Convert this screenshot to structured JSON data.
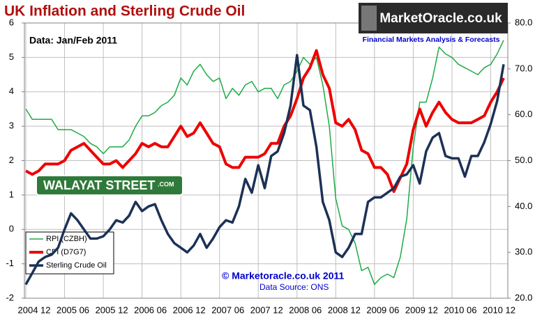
{
  "chart_data": {
    "type": "line",
    "title": "UK Inflation and Sterling Crude Oil",
    "subtitle": "Data:  Jan/Feb 2011",
    "logo": "MarketOracle.co.uk",
    "logo_tagline": "Financial Markets Analysis & Forecasts",
    "badge": "WALAYAT STREET",
    "badge_suffix": ".COM",
    "copyright": "© Marketoracle.co.uk  2011",
    "source": "Data Source: ONS",
    "categories": [
      "2004 12",
      null,
      null,
      null,
      null,
      null,
      "2005 06",
      null,
      null,
      null,
      null,
      null,
      "2005 12",
      null,
      null,
      null,
      null,
      null,
      "2006 06",
      null,
      null,
      null,
      null,
      null,
      "2006 12",
      null,
      null,
      null,
      null,
      null,
      "2007 06",
      null,
      null,
      null,
      null,
      null,
      "2007 12",
      null,
      null,
      null,
      null,
      null,
      "2008 06",
      null,
      null,
      null,
      null,
      null,
      "2008 12",
      null,
      null,
      null,
      null,
      null,
      "2009 06",
      null,
      null,
      null,
      null,
      null,
      "2009 12",
      null,
      null,
      null,
      null,
      null,
      "2010 06",
      null,
      null,
      null,
      null,
      null,
      "2010 12",
      null,
      null
    ],
    "series": [
      {
        "name": "RPI (CZBH)",
        "color": "#1faa46",
        "width": 1.5,
        "values": [
          3.5,
          3.2,
          3.2,
          3.2,
          3.2,
          2.9,
          2.9,
          2.9,
          2.8,
          2.7,
          2.5,
          2.4,
          2.2,
          2.4,
          2.4,
          2.4,
          2.6,
          3.0,
          3.3,
          3.3,
          3.4,
          3.6,
          3.7,
          3.9,
          4.4,
          4.2,
          4.6,
          4.8,
          4.5,
          4.3,
          4.4,
          3.8,
          4.1,
          3.9,
          4.2,
          4.3,
          4.0,
          4.1,
          4.1,
          3.8,
          4.2,
          4.3,
          4.6,
          5.0,
          4.8,
          5.0,
          4.2,
          3.0,
          0.9,
          0.1,
          0.0,
          -0.4,
          -1.2,
          -1.1,
          -1.6,
          -1.4,
          -1.3,
          -1.4,
          -0.8,
          0.3,
          2.4,
          3.7,
          3.7,
          4.4,
          5.3,
          5.1,
          5.0,
          4.8,
          4.7,
          4.6,
          4.5,
          4.7,
          4.8,
          5.1,
          5.5
        ]
      },
      {
        "name": "CPI (D7G7)",
        "color": "#ee0000",
        "width": 4,
        "values": [
          1.7,
          1.6,
          1.7,
          1.9,
          1.9,
          1.9,
          2.0,
          2.3,
          2.4,
          2.5,
          2.3,
          2.1,
          1.9,
          1.9,
          2.0,
          1.8,
          2.0,
          2.2,
          2.5,
          2.4,
          2.5,
          2.4,
          2.4,
          2.7,
          3.0,
          2.7,
          2.8,
          3.1,
          2.8,
          2.5,
          2.4,
          1.9,
          1.8,
          1.8,
          2.1,
          2.1,
          2.1,
          2.2,
          2.5,
          2.5,
          3.0,
          3.3,
          3.8,
          4.4,
          4.7,
          5.2,
          4.5,
          4.1,
          3.1,
          3.0,
          3.2,
          2.9,
          2.3,
          2.2,
          1.8,
          1.8,
          1.6,
          1.1,
          1.5,
          1.9,
          2.9,
          3.5,
          3.0,
          3.4,
          3.7,
          3.4,
          3.2,
          3.1,
          3.1,
          3.1,
          3.2,
          3.3,
          3.7,
          4.0,
          4.4
        ]
      },
      {
        "name": "Sterling Crude Oil",
        "color": "#1c3156",
        "width": 3.5,
        "axis": "y2",
        "values": [
          23,
          25.5,
          28,
          29,
          29.5,
          31,
          35,
          38.5,
          37,
          35,
          33,
          33,
          33.5,
          35,
          37,
          36.5,
          38,
          41,
          39,
          40,
          40.5,
          37,
          34,
          32,
          31,
          30,
          31.5,
          34,
          31,
          33,
          35.5,
          37,
          36.5,
          40,
          46,
          43,
          49,
          44,
          51,
          52,
          56,
          62,
          73,
          62,
          61,
          53,
          41,
          37,
          30,
          29,
          31,
          34,
          34,
          41,
          42,
          42,
          43,
          44,
          46.5,
          47,
          49,
          45,
          52,
          55,
          56,
          51,
          50.5,
          50.5,
          46.5,
          51,
          51,
          54,
          58,
          63,
          71
        ]
      }
    ],
    "ylim": [
      -2,
      6
    ],
    "yticks": [
      -2,
      -1,
      0,
      1,
      2,
      3,
      4,
      5,
      6
    ],
    "y2lim": [
      20,
      80
    ],
    "y2ticks": [
      {
        "value": 20,
        "label": "20.0"
      },
      {
        "value": 30,
        "label": "30.0"
      },
      {
        "value": 40,
        "label": "40.0"
      },
      {
        "value": 50,
        "label": "50.0"
      },
      {
        "value": 60,
        "label": "60.0"
      },
      {
        "value": 70,
        "label": "70.0"
      },
      {
        "value": 80,
        "label": "80.0"
      }
    ],
    "grid": true,
    "legend": "lower left"
  }
}
